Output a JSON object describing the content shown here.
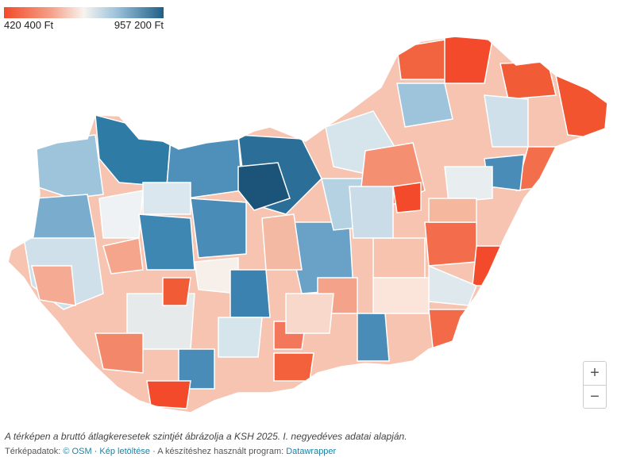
{
  "legend": {
    "min_label": "420 400 Ft",
    "max_label": "957 200 Ft",
    "colors": [
      "#f24a2a",
      "#f5a28a",
      "#f7f3ee",
      "#9ec4dc",
      "#1f5f86"
    ]
  },
  "map": {
    "region": "Hungary districts",
    "outline_color": "#ffffff"
  },
  "zoom": {
    "plus": "+",
    "minus": "−"
  },
  "note": "A térképen a bruttó átlagkeresetek szintjét ábrázolja a KSH 2025. I. negyedéves adatai alapján.",
  "credits": {
    "prefix": "Térképadatok:",
    "osm": "© OSM",
    "sep1": "·",
    "download": "Kép letöltése",
    "sep2": "· A készítéshez használt program:",
    "tool": "Datawrapper"
  }
}
